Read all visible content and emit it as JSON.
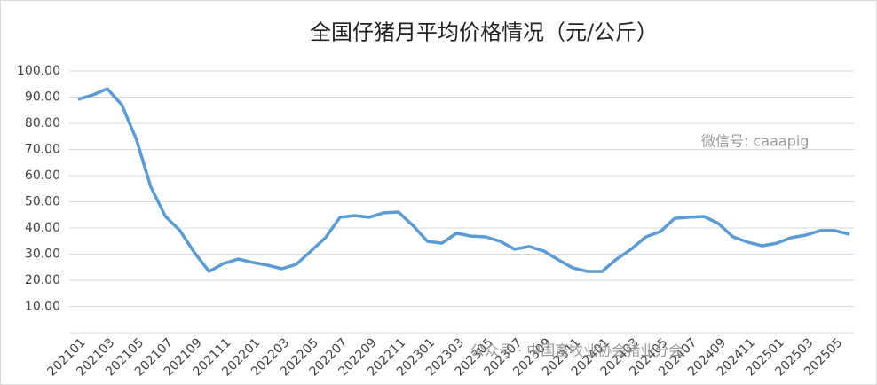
{
  "chart_data": {
    "type": "line",
    "title": "全国仔猪月平均价格情况（元/公斤）",
    "categories": [
      "202101",
      null,
      "202103",
      null,
      "202105",
      null,
      "202107",
      null,
      "202109",
      null,
      "202111",
      null,
      "202201",
      null,
      "202203",
      null,
      "202205",
      null,
      "202207",
      null,
      "202209",
      null,
      "202211",
      null,
      "202301",
      null,
      "202303",
      null,
      "202305",
      null,
      "202307",
      null,
      "202309",
      null,
      "202311",
      null,
      "202401",
      null,
      "202403",
      null,
      "202405",
      null,
      "202407",
      null,
      "202409",
      null,
      "202411",
      null,
      "202501",
      null,
      "202503",
      null,
      "202505",
      null
    ],
    "values": [
      89.2,
      90.8,
      93.2,
      87.1,
      73.9,
      55.6,
      44.4,
      39,
      30.5,
      23.4,
      26.4,
      28.1,
      26.8,
      25.8,
      24.4,
      26.1,
      31.2,
      36.3,
      44.1,
      44.7,
      44.1,
      45.8,
      46.1,
      41,
      34.9,
      34.2,
      38,
      36.9,
      36.6,
      34.9,
      31.9,
      32.9,
      31.2,
      27.8,
      24.7,
      23.4,
      23.4,
      28.1,
      31.9,
      36.6,
      38.6,
      43.7,
      44.1,
      44.4,
      41.7,
      36.6,
      34.6,
      33.2,
      34.2,
      36.3,
      37.3,
      39,
      39,
      37.6
    ],
    "color": "#5b9bd5",
    "ylim": [
      0,
      100
    ],
    "yticks": [
      {
        "value": 10,
        "label": "10.00"
      },
      {
        "value": 20,
        "label": "20.00"
      },
      {
        "value": 30,
        "label": "30.00"
      },
      {
        "value": 40,
        "label": "40.00"
      },
      {
        "value": 50,
        "label": "50.00"
      },
      {
        "value": 60,
        "label": "60.00"
      },
      {
        "value": 70,
        "label": "70.00"
      },
      {
        "value": 80,
        "label": "80.00"
      },
      {
        "value": 90,
        "label": "90.00"
      },
      {
        "value": 100,
        "label": "100.00"
      }
    ],
    "grid": true,
    "watermarks": [
      "微信号: caaapig",
      "公众号 · 中国畜牧业协会猪业分会"
    ]
  }
}
